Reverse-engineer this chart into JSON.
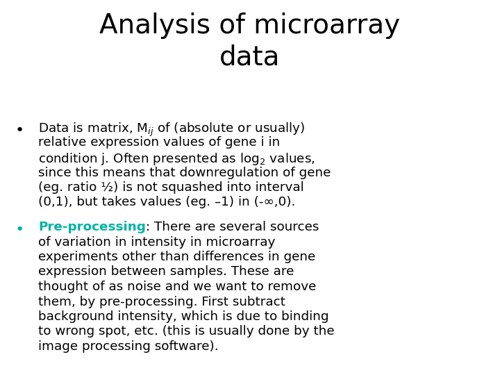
{
  "title": "Analysis of microarray\ndata",
  "title_fontsize": 28,
  "title_color": "#000000",
  "bg_color": "#ffffff",
  "keyword_color": "#00b3a4",
  "text_color": "#000000",
  "text_fontsize": 13.2,
  "keyword_fontsize": 13.2,
  "bullet_fontsize": 16,
  "bullet1_line1": "Data is matrix, M$_{ij}$ of (absolute or usually)",
  "bullet1_line2": "relative expression values of gene i in",
  "bullet1_line3": "condition j. Often presented as log$_2$ values,",
  "bullet1_line4": "since this means that downregulation of gene",
  "bullet1_line5": "(eg. ratio ½) is not squashed into interval",
  "bullet1_line6": "(0,1), but takes values (eg. –1) in (-∞,0).",
  "bullet2_keyword": "Pre-processing",
  "bullet2_colon_rest": ": There are several sources",
  "bullet2_line2": "of variation in intensity in microarray",
  "bullet2_line3": "experiments other than differences in gene",
  "bullet2_line4": "expression between samples. These are",
  "bullet2_line5": "thought of as noise and we want to remove",
  "bullet2_line6": "them, by pre-processing. First subtract",
  "bullet2_line7": "background intensity, which is due to binding",
  "bullet2_line8": "to wrong spot, etc. (this is usually done by the",
  "bullet2_line9": "image processing software)."
}
